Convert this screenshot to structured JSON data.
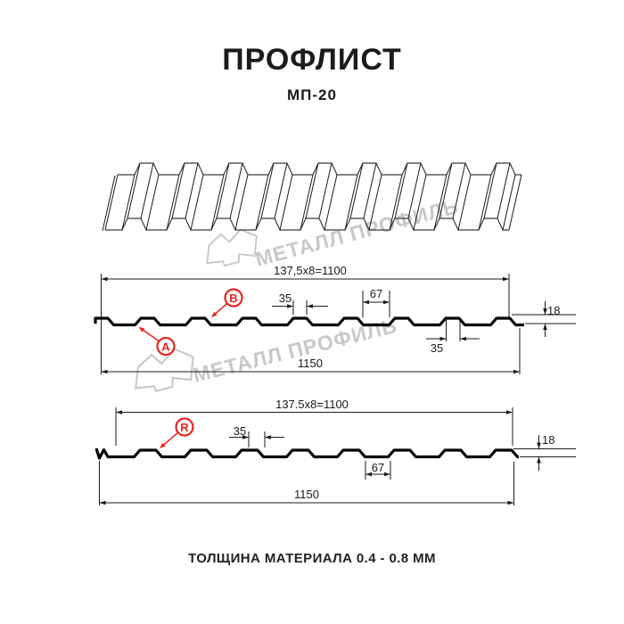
{
  "title": "ПРОФЛИСТ",
  "subtitle": "МП-20",
  "footer_note": "ТОЛЩИНА МАТЕРИАЛА 0.4 - 0.8 ММ",
  "watermark": {
    "text": "МЕТАЛЛ ПРОФИЛЬ",
    "color": "#c8c8cc"
  },
  "colors": {
    "line": "#1a1a1a",
    "profile": "#000000",
    "accent_red": "#e8251d",
    "sheet_line": "#3a3a3a"
  },
  "diagram_side_a": {
    "labels": {
      "a": "A",
      "b": "B"
    },
    "dims": {
      "module_width": "137,5x8=1100",
      "rib_top": "35",
      "valley_width": "67",
      "height": "18",
      "lock_width": "35",
      "total_width": "1150"
    }
  },
  "diagram_side_r": {
    "labels": {
      "r": "R"
    },
    "dims": {
      "module_width": "137.5x8=1100",
      "rib_top": "35",
      "valley_width": "67",
      "height": "18",
      "total_width": "1150"
    }
  }
}
